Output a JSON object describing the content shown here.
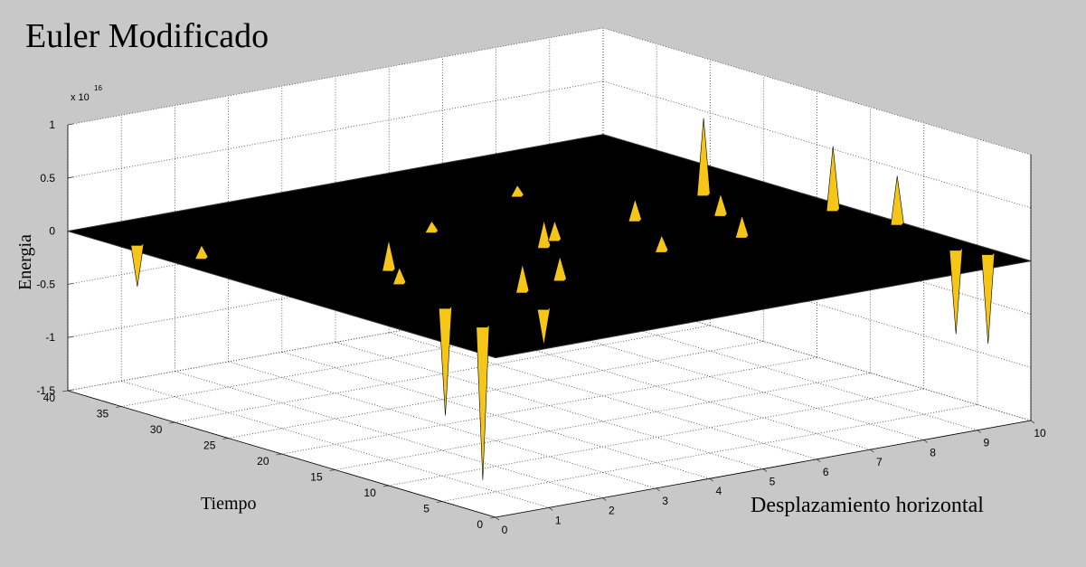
{
  "chart_data": {
    "type": "surface3d",
    "title": "Euler Modificado",
    "xlabel": "Desplazamiento horizontal",
    "ylabel": "Tiempo",
    "zlabel": "Energia",
    "zscale_label": "x 10",
    "zscale_power": "16",
    "xlim": [
      0,
      10
    ],
    "ylim": [
      0,
      40
    ],
    "zlim": [
      -1.5,
      1
    ],
    "xticks": [
      0,
      1,
      2,
      3,
      4,
      5,
      6,
      7,
      8,
      9,
      10
    ],
    "yticks": [
      0,
      5,
      10,
      15,
      20,
      25,
      30,
      35,
      40
    ],
    "zticks": [
      -1.5,
      -1,
      -0.5,
      0,
      0.5,
      1
    ],
    "grid": true,
    "surface_color": "#000000",
    "spike_color": "#f5c518",
    "spikes": {
      "x": [
        8.8,
        9.7,
        9.9,
        1.1,
        1.4,
        2.2,
        4.9,
        5.3,
        7.0,
        2.9,
        3.8,
        6.1,
        7.6,
        0.5,
        1.8,
        9.6,
        9.8,
        0.3,
        2.5,
        4.2,
        8.2,
        6.6
      ],
      "y": [
        24.6,
        17,
        12,
        6.7,
        11.7,
        21,
        20,
        21,
        22,
        12,
        13,
        15,
        15,
        30,
        18,
        5,
        3,
        35,
        8,
        27,
        20,
        31
      ],
      "z": [
        0.72,
        0.6,
        0.45,
        -1.45,
        -1.02,
        0.28,
        0.25,
        0.18,
        0.2,
        0.26,
        0.22,
        0.15,
        0.2,
        0.12,
        0.15,
        -0.8,
        -0.85,
        -0.4,
        -0.35,
        0.1,
        0.2,
        0.1
      ]
    }
  }
}
